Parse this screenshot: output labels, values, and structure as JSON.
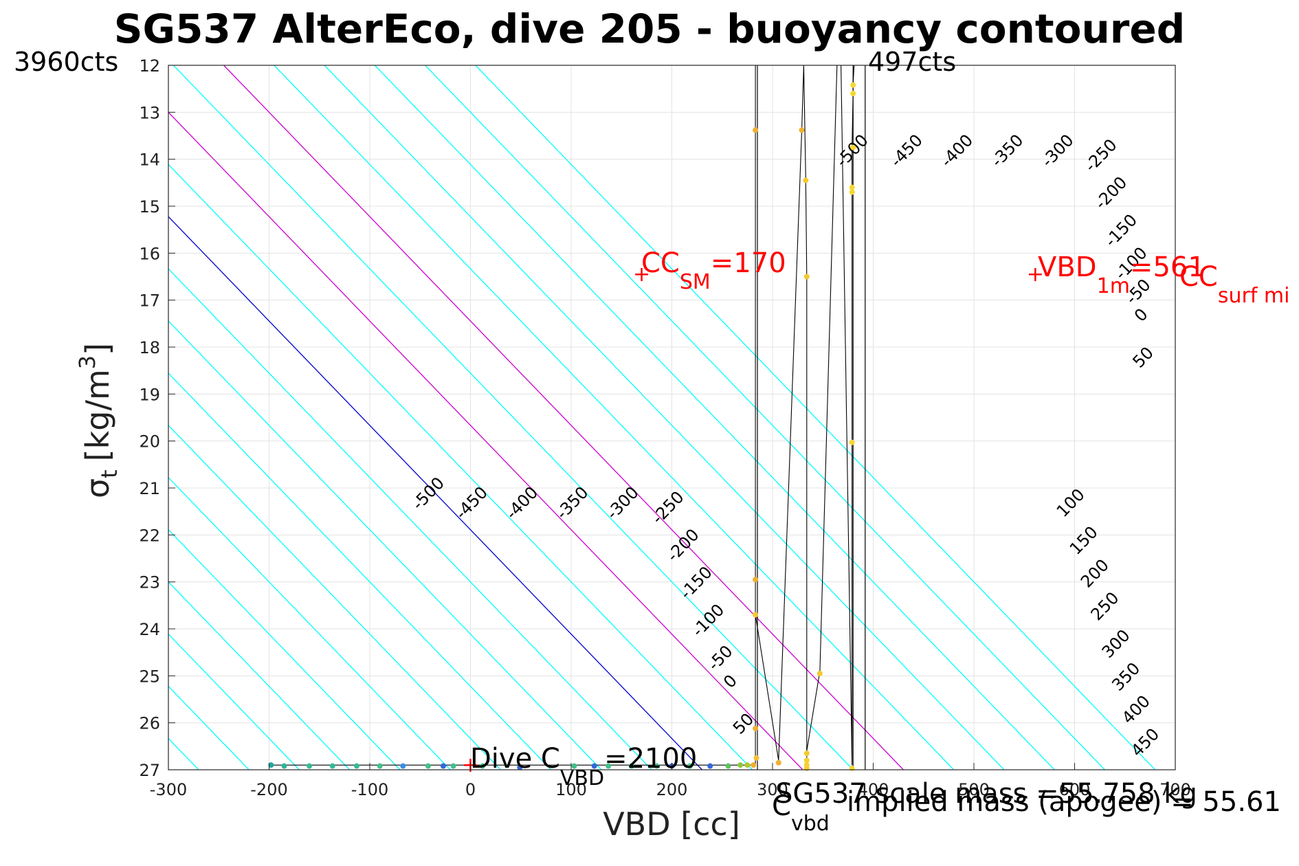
{
  "chart_data": {
    "type": "line",
    "title": "SG537 AlterEco, dive 205 - buoyancy contoured",
    "xlabel": "VBD [cc]",
    "ylabel": {
      "main": "σ",
      "sub": "t",
      "units": "[kg/m",
      "sup": "3",
      "close": "]"
    },
    "xlim": [
      -300,
      700
    ],
    "ylim": [
      12,
      27
    ],
    "y_reversed": true,
    "grid": true,
    "xticks": [
      -300,
      -200,
      -100,
      0,
      100,
      200,
      300,
      400,
      500,
      600,
      700
    ],
    "yticks": [
      12,
      13,
      14,
      15,
      16,
      17,
      18,
      19,
      20,
      21,
      22,
      23,
      24,
      25,
      26,
      27
    ],
    "corner_labels": {
      "left": "3960cts",
      "right": "497cts"
    },
    "contours": {
      "levels": [
        -500,
        -450,
        -400,
        -350,
        -300,
        -250,
        -200,
        -150,
        -100,
        -50,
        0,
        50,
        100,
        150,
        200,
        250,
        300,
        350,
        400,
        450
      ],
      "colors": {
        "default": "#00ffff",
        "zero": "#0000cc",
        "magenta": "#cc00cc"
      },
      "magenta_levels": [
        100,
        200
      ],
      "x_at_sigma27": {
        "-500": -270,
        "-450": -220,
        "-400": -170,
        "-350": -120,
        "-300": -70,
        "-250": -20,
        "-200": 30,
        "-150": 80,
        "-100": 130,
        "-50": 180,
        "0": 230,
        "50": 280,
        "100": 330,
        "150": 380,
        "200": 430,
        "250": 480,
        "300": 530,
        "350": 580,
        "400": 630,
        "450": 680
      },
      "slope_cc_per_sigma": 45,
      "labels_lower": [
        {
          "level": -500,
          "x": -38,
          "y": 21.2
        },
        {
          "level": -450,
          "x": 5,
          "y": 21.4
        },
        {
          "level": -400,
          "x": 55,
          "y": 21.4
        },
        {
          "level": -350,
          "x": 105,
          "y": 21.4
        },
        {
          "level": -300,
          "x": 155,
          "y": 21.4
        },
        {
          "level": -250,
          "x": 200,
          "y": 21.5
        },
        {
          "level": -200,
          "x": 215,
          "y": 22.3
        },
        {
          "level": -150,
          "x": 228,
          "y": 23.1
        },
        {
          "level": -100,
          "x": 240,
          "y": 23.9
        },
        {
          "level": -50,
          "x": 252,
          "y": 24.7
        },
        {
          "level": 0,
          "x": 262,
          "y": 25.2
        },
        {
          "level": 50,
          "x": 275,
          "y": 26.1
        },
        {
          "level": 100,
          "x": 600,
          "y": 21.4
        },
        {
          "level": 150,
          "x": 613,
          "y": 22.2
        },
        {
          "level": 200,
          "x": 624,
          "y": 22.9
        },
        {
          "level": 250,
          "x": 634,
          "y": 23.6
        },
        {
          "level": 300,
          "x": 645,
          "y": 24.4
        },
        {
          "level": 350,
          "x": 655,
          "y": 25.1
        },
        {
          "level": 400,
          "x": 665,
          "y": 25.8
        },
        {
          "level": 450,
          "x": 674,
          "y": 26.5
        }
      ],
      "labels_upper": [
        {
          "level": -500,
          "x": 383,
          "y": 13.9
        },
        {
          "level": -450,
          "x": 437,
          "y": 13.9
        },
        {
          "level": -400,
          "x": 487,
          "y": 13.9
        },
        {
          "level": -350,
          "x": 537,
          "y": 13.9
        },
        {
          "level": -300,
          "x": 587,
          "y": 13.9
        },
        {
          "level": -250,
          "x": 630,
          "y": 14.0
        },
        {
          "level": -200,
          "x": 640,
          "y": 14.8
        },
        {
          "level": -150,
          "x": 650,
          "y": 15.6
        },
        {
          "level": -100,
          "x": 660,
          "y": 16.3
        },
        {
          "level": -50,
          "x": 667,
          "y": 16.9
        },
        {
          "level": 0,
          "x": 670,
          "y": 17.4
        },
        {
          "level": 50,
          "x": 672,
          "y": 18.3
        }
      ]
    },
    "vertical_lines_vbd": [
      285,
      380,
      392
    ],
    "trace": {
      "color": "#000000",
      "points": [
        [
          -200,
          26.9
        ],
        [
          -180,
          26.9
        ],
        [
          -150,
          26.9
        ],
        [
          -120,
          26.9
        ],
        [
          -90,
          26.9
        ],
        [
          -60,
          26.9
        ],
        [
          -30,
          26.9
        ],
        [
          0,
          26.9
        ],
        [
          40,
          26.9
        ],
        [
          80,
          26.9
        ],
        [
          120,
          26.9
        ],
        [
          160,
          26.9
        ],
        [
          200,
          26.9
        ],
        [
          240,
          26.9
        ],
        [
          270,
          26.9
        ],
        [
          283,
          26.9
        ],
        [
          283,
          26.1
        ],
        [
          283,
          23.7
        ],
        [
          283,
          22.9
        ],
        [
          283,
          13.4
        ],
        [
          283,
          12.0
        ],
        [
          283,
          23.7
        ],
        [
          306,
          26.8
        ],
        [
          329,
          13.4
        ],
        [
          331,
          12.0
        ],
        [
          333,
          14.4
        ],
        [
          334,
          16.5
        ],
        [
          334,
          26.9
        ],
        [
          334,
          26.6
        ],
        [
          347,
          24.9
        ],
        [
          364,
          12.0
        ],
        [
          368,
          12.0
        ],
        [
          379,
          26.9
        ],
        [
          379,
          20.0
        ],
        [
          379,
          14.6
        ],
        [
          379,
          13.7
        ],
        [
          380,
          12.6
        ],
        [
          380,
          12.4
        ],
        [
          381,
          12.0
        ]
      ]
    },
    "points": [
      {
        "x": -198,
        "y": 26.9,
        "c": "#1fa8a0"
      },
      {
        "x": -185,
        "y": 26.92,
        "c": "#2ab59a"
      },
      {
        "x": -160,
        "y": 26.92,
        "c": "#33bb95"
      },
      {
        "x": -137,
        "y": 26.92,
        "c": "#33bb95"
      },
      {
        "x": -113,
        "y": 26.92,
        "c": "#33bb95"
      },
      {
        "x": -90,
        "y": 26.92,
        "c": "#40c08a"
      },
      {
        "x": -67,
        "y": 26.92,
        "c": "#3a8ee0"
      },
      {
        "x": -42,
        "y": 26.92,
        "c": "#40c08a"
      },
      {
        "x": -27,
        "y": 26.92,
        "c": "#3366dd"
      },
      {
        "x": -17,
        "y": 26.92,
        "c": "#40c08a"
      },
      {
        "x": 12,
        "y": 26.92,
        "c": "#40c08a"
      },
      {
        "x": 49,
        "y": 26.95,
        "c": "#3366dd"
      },
      {
        "x": 103,
        "y": 26.92,
        "c": "#40c08a"
      },
      {
        "x": 123,
        "y": 26.92,
        "c": "#3366dd"
      },
      {
        "x": 137,
        "y": 26.92,
        "c": "#40c08a"
      },
      {
        "x": 160,
        "y": 26.92,
        "c": "#33bb95"
      },
      {
        "x": 185,
        "y": 26.92,
        "c": "#40c08a"
      },
      {
        "x": 200,
        "y": 26.92,
        "c": "#3366dd"
      },
      {
        "x": 218,
        "y": 26.92,
        "c": "#40c08a"
      },
      {
        "x": 238,
        "y": 26.92,
        "c": "#3366dd"
      },
      {
        "x": 256,
        "y": 26.92,
        "c": "#5cc05c"
      },
      {
        "x": 268,
        "y": 26.9,
        "c": "#8cc840"
      },
      {
        "x": 275,
        "y": 26.9,
        "c": "#b0c830"
      },
      {
        "x": 281,
        "y": 26.9,
        "c": "#f0b030"
      },
      {
        "x": 284,
        "y": 26.75,
        "c": "#f5c030"
      },
      {
        "x": 283,
        "y": 26.12,
        "c": "#f0b030"
      },
      {
        "x": 283,
        "y": 23.7,
        "c": "#f5c830"
      },
      {
        "x": 283,
        "y": 22.95,
        "c": "#f0b030"
      },
      {
        "x": 283,
        "y": 13.38,
        "c": "#f0b030"
      },
      {
        "x": 306,
        "y": 26.85,
        "c": "#f0b030"
      },
      {
        "x": 329,
        "y": 13.38,
        "c": "#f0b030"
      },
      {
        "x": 333,
        "y": 14.45,
        "c": "#f5c830"
      },
      {
        "x": 334,
        "y": 16.5,
        "c": "#f5c830"
      },
      {
        "x": 334,
        "y": 26.65,
        "c": "#f5c830"
      },
      {
        "x": 334,
        "y": 26.8,
        "c": "#f5d030"
      },
      {
        "x": 334,
        "y": 26.9,
        "c": "#f5d030"
      },
      {
        "x": 334,
        "y": 26.97,
        "c": "#f5d030"
      },
      {
        "x": 347,
        "y": 24.95,
        "c": "#f5c830"
      },
      {
        "x": 379,
        "y": 20.03,
        "c": "#f5d830"
      },
      {
        "x": 379,
        "y": 14.6,
        "c": "#f5d830"
      },
      {
        "x": 379,
        "y": 14.7,
        "c": "#f5d830"
      },
      {
        "x": 380,
        "y": 13.75,
        "c": "#f5d830"
      },
      {
        "x": 380,
        "y": 12.6,
        "c": "#f5d830"
      },
      {
        "x": 380,
        "y": 12.42,
        "c": "#f5d830"
      },
      {
        "x": 379,
        "y": 26.97,
        "c": "#f5d830"
      }
    ],
    "markers": [
      {
        "x": 0,
        "y": 26.9,
        "symbol": "+",
        "color": "#ff0000"
      },
      {
        "x": 170,
        "y": 16.45,
        "symbol": "+",
        "color": "#ff0000"
      },
      {
        "x": 561,
        "y": 16.45,
        "symbol": "+",
        "color": "#ff0000"
      }
    ],
    "annotations": {
      "cc_sm": {
        "text_main": "CC",
        "text_sub": "SM",
        "text_val": "=170",
        "color": "#ff0000"
      },
      "vbd_1m": {
        "text_main": "VBD",
        "text_sub": "1m",
        "text_val": "=561",
        "color": "#ff0000"
      },
      "cc_surf": {
        "text_main": "CC",
        "text_sub": "surf mi",
        "color": "#ff0000"
      },
      "dive_c": {
        "text_main": "Dive C",
        "text_sub": "VBD",
        "text_val": "=2100",
        "color": "#000000"
      },
      "c_vbd": {
        "text_main": "C",
        "text_sub": "vbd",
        "color": "#000000"
      },
      "scale_mass": {
        "text": "SG537 scale mass =55.758 kg",
        "color": "#000000"
      },
      "implied_mass": {
        "text": "implied mass (apogee) = 55.61",
        "color": "#000000"
      }
    }
  }
}
